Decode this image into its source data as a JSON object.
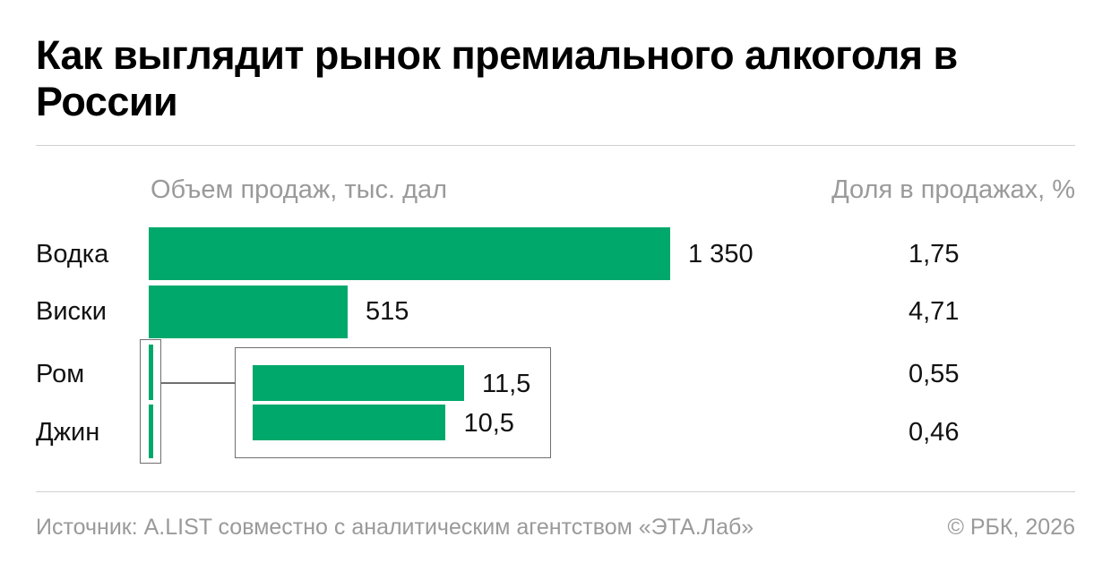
{
  "title": "Как выглядит рынок премиального алкоголя в России",
  "column_headers": {
    "volume": "Объем продаж, тыс. дал",
    "share": "Доля в продажах, %"
  },
  "rows": [
    {
      "category": "Водка",
      "volume_label": "1 350",
      "share_label": "1,75"
    },
    {
      "category": "Виски",
      "volume_label": "515",
      "share_label": "4,71"
    },
    {
      "category": "Ром",
      "volume_label": "11,5",
      "share_label": "0,55"
    },
    {
      "category": "Джин",
      "volume_label": "10,5",
      "share_label": "0,46"
    }
  ],
  "footer": {
    "source": "Источник: A.LIST совместно с аналитическим агентством «ЭТА.Лаб»",
    "copyright": "© РБК, 2026"
  },
  "colors": {
    "bar": "#00a86b",
    "muted_text": "#9a9a9a",
    "frame": "#6f6f6f"
  },
  "chart_data": {
    "type": "bar",
    "orientation": "horizontal",
    "title": "Как выглядит рынок премиального алкоголя в России",
    "categories": [
      "Водка",
      "Виски",
      "Ром",
      "Джин"
    ],
    "series": [
      {
        "name": "Объем продаж, тыс. дал",
        "values": [
          1350,
          515,
          11.5,
          10.5
        ]
      },
      {
        "name": "Доля в продажах, %",
        "values": [
          1.75,
          4.71,
          0.55,
          0.46
        ]
      }
    ],
    "inset": {
      "categories": [
        "Ром",
        "Джин"
      ],
      "values": [
        11.5,
        10.5
      ]
    },
    "grid": false,
    "legend": "none"
  }
}
